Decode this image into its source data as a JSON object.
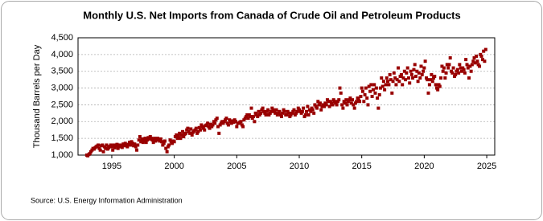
{
  "chart_data": {
    "type": "scatter",
    "title": "Monthly U.S. Net Imports from Canada of Crude Oil and Petroleum Products",
    "y_label": "Thousand Barrels per Day",
    "source": "Source: U.S. Energy Information Administration",
    "color": "#990000",
    "grid": true,
    "xlim": [
      1992.3,
      2025.64
    ],
    "xticks": [
      1995,
      2000,
      2005,
      2010,
      2015,
      2020,
      2025
    ],
    "ylim": [
      1000,
      4500
    ],
    "yticks": [
      {
        "value": 1000,
        "label": "1,000"
      },
      {
        "value": 1500,
        "label": "1,500"
      },
      {
        "value": 2000,
        "label": "2,000"
      },
      {
        "value": 2500,
        "label": "2,500"
      },
      {
        "value": 3000,
        "label": "3,000"
      },
      {
        "value": 3500,
        "label": "3,500"
      },
      {
        "value": 4000,
        "label": "4,000"
      },
      {
        "value": 4500,
        "label": "4,500"
      }
    ],
    "x": [
      1993,
      1993.08,
      1993.17,
      1993.25,
      1993.33,
      1993.42,
      1993.5,
      1993.58,
      1993.67,
      1993.75,
      1993.83,
      1993.92,
      1994,
      1994.08,
      1994.17,
      1994.25,
      1994.33,
      1994.42,
      1994.5,
      1994.58,
      1994.67,
      1994.75,
      1994.83,
      1994.92,
      1995,
      1995.08,
      1995.17,
      1995.25,
      1995.33,
      1995.42,
      1995.5,
      1995.58,
      1995.67,
      1995.75,
      1995.83,
      1995.92,
      1996,
      1996.08,
      1996.17,
      1996.25,
      1996.33,
      1996.42,
      1996.5,
      1996.58,
      1996.67,
      1996.75,
      1996.83,
      1996.92,
      1997,
      1997.08,
      1997.17,
      1997.25,
      1997.33,
      1997.42,
      1997.5,
      1997.58,
      1997.67,
      1997.75,
      1997.83,
      1997.92,
      1998,
      1998.08,
      1998.17,
      1998.25,
      1998.33,
      1998.42,
      1998.5,
      1998.58,
      1998.67,
      1998.75,
      1998.83,
      1998.92,
      1999,
      1999.08,
      1999.17,
      1999.25,
      1999.33,
      1999.42,
      1999.5,
      1999.58,
      1999.67,
      1999.75,
      1999.83,
      1999.92,
      2000,
      2000.08,
      2000.17,
      2000.25,
      2000.33,
      2000.42,
      2000.5,
      2000.58,
      2000.67,
      2000.75,
      2000.83,
      2000.92,
      2001,
      2001.08,
      2001.17,
      2001.25,
      2001.33,
      2001.42,
      2001.5,
      2001.58,
      2001.67,
      2001.75,
      2001.83,
      2001.92,
      2002,
      2002.08,
      2002.17,
      2002.25,
      2002.33,
      2002.42,
      2002.5,
      2002.58,
      2002.67,
      2002.75,
      2002.83,
      2002.92,
      2003,
      2003.08,
      2003.17,
      2003.25,
      2003.33,
      2003.42,
      2003.5,
      2003.58,
      2003.67,
      2003.75,
      2003.83,
      2003.92,
      2004,
      2004.08,
      2004.17,
      2004.25,
      2004.33,
      2004.42,
      2004.5,
      2004.58,
      2004.67,
      2004.75,
      2004.83,
      2004.92,
      2005,
      2005.08,
      2005.17,
      2005.25,
      2005.33,
      2005.42,
      2005.5,
      2005.58,
      2005.67,
      2005.75,
      2005.83,
      2005.92,
      2006,
      2006.08,
      2006.17,
      2006.25,
      2006.33,
      2006.42,
      2006.5,
      2006.58,
      2006.67,
      2006.75,
      2006.83,
      2006.92,
      2007,
      2007.08,
      2007.17,
      2007.25,
      2007.33,
      2007.42,
      2007.5,
      2007.58,
      2007.67,
      2007.75,
      2007.83,
      2007.92,
      2008,
      2008.08,
      2008.17,
      2008.25,
      2008.33,
      2008.42,
      2008.5,
      2008.58,
      2008.67,
      2008.75,
      2008.83,
      2008.92,
      2009,
      2009.08,
      2009.17,
      2009.25,
      2009.33,
      2009.42,
      2009.5,
      2009.58,
      2009.67,
      2009.75,
      2009.83,
      2009.92,
      2010,
      2010.08,
      2010.17,
      2010.25,
      2010.33,
      2010.42,
      2010.5,
      2010.58,
      2010.67,
      2010.75,
      2010.83,
      2010.92,
      2011,
      2011.08,
      2011.17,
      2011.25,
      2011.33,
      2011.42,
      2011.5,
      2011.58,
      2011.67,
      2011.75,
      2011.83,
      2011.92,
      2012,
      2012.08,
      2012.17,
      2012.25,
      2012.33,
      2012.42,
      2012.5,
      2012.58,
      2012.67,
      2012.75,
      2012.83,
      2012.92,
      2013,
      2013.08,
      2013.17,
      2013.25,
      2013.33,
      2013.42,
      2013.5,
      2013.58,
      2013.67,
      2013.75,
      2013.83,
      2013.92,
      2014,
      2014.08,
      2014.17,
      2014.25,
      2014.33,
      2014.42,
      2014.5,
      2014.58,
      2014.67,
      2014.75,
      2014.83,
      2014.92,
      2015,
      2015.08,
      2015.17,
      2015.25,
      2015.33,
      2015.42,
      2015.5,
      2015.58,
      2015.67,
      2015.75,
      2015.83,
      2015.92,
      2016,
      2016.08,
      2016.17,
      2016.25,
      2016.33,
      2016.42,
      2016.5,
      2016.58,
      2016.67,
      2016.75,
      2016.83,
      2016.92,
      2017,
      2017.08,
      2017.17,
      2017.25,
      2017.33,
      2017.42,
      2017.5,
      2017.58,
      2017.67,
      2017.75,
      2017.83,
      2017.92,
      2018,
      2018.08,
      2018.17,
      2018.25,
      2018.33,
      2018.42,
      2018.5,
      2018.58,
      2018.67,
      2018.75,
      2018.83,
      2018.92,
      2019,
      2019.08,
      2019.17,
      2019.25,
      2019.33,
      2019.42,
      2019.5,
      2019.58,
      2019.67,
      2019.75,
      2019.83,
      2019.92,
      2020,
      2020.08,
      2020.17,
      2020.25,
      2020.33,
      2020.42,
      2020.5,
      2020.58,
      2020.67,
      2020.75,
      2020.83,
      2020.92,
      2021,
      2021.08,
      2021.17,
      2021.25,
      2021.33,
      2021.42,
      2021.5,
      2021.58,
      2021.67,
      2021.75,
      2021.83,
      2021.92,
      2022,
      2022.08,
      2022.17,
      2022.25,
      2022.33,
      2022.42,
      2022.5,
      2022.58,
      2022.67,
      2022.75,
      2022.83,
      2022.92,
      2023,
      2023.08,
      2023.17,
      2023.25,
      2023.33,
      2023.42,
      2023.5,
      2023.58,
      2023.67,
      2023.75,
      2023.83,
      2023.92,
      2024,
      2024.08,
      2024.17,
      2024.25,
      2024.33,
      2024.42,
      2024.5,
      2024.58,
      2024.67,
      2024.75,
      2024.83,
      2024.92
    ],
    "values": [
      1000,
      980,
      1020,
      1050,
      1100,
      1150,
      1200,
      1180,
      1220,
      1250,
      1270,
      1300,
      1200,
      1150,
      1280,
      1300,
      1100,
      1250,
      1200,
      1300,
      1180,
      1220,
      1260,
      1300,
      1250,
      1150,
      1300,
      1220,
      1280,
      1320,
      1200,
      1250,
      1300,
      1280,
      1230,
      1330,
      1280,
      1350,
      1300,
      1250,
      1320,
      1380,
      1300,
      1400,
      1350,
      1280,
      1330,
      1250,
      1150,
      1300,
      1450,
      1550,
      1400,
      1480,
      1380,
      1420,
      1500,
      1380,
      1450,
      1520,
      1480,
      1550,
      1500,
      1450,
      1380,
      1500,
      1420,
      1450,
      1500,
      1460,
      1420,
      1480,
      1400,
      1300,
      1350,
      1420,
      1200,
      1100,
      1250,
      1300,
      1450,
      1400,
      1350,
      1420,
      1400,
      1550,
      1600,
      1500,
      1580,
      1650,
      1500,
      1600,
      1700,
      1550,
      1620,
      1650,
      1750,
      1800,
      1700,
      1650,
      1780,
      1600,
      1680,
      1720,
      1750,
      1800,
      1650,
      1700,
      1820,
      1750,
      1900,
      1850,
      1800,
      1750,
      1880,
      1900,
      1950,
      1850,
      1800,
      1920,
      1850,
      1900,
      2000,
      1950,
      2050,
      2100,
      1850,
      1650,
      1900,
      1950,
      2000,
      1950,
      2000,
      2050,
      2100,
      1950,
      1900,
      2050,
      2000,
      1950,
      2020,
      1980,
      2050,
      2000,
      1850,
      1950,
      1950,
      1980,
      2000,
      1900,
      1850,
      2050,
      2100,
      2150,
      2200,
      2100,
      2200,
      2150,
      2400,
      2100,
      2150,
      2000,
      2250,
      2200,
      2150,
      2300,
      2200,
      2250,
      2350,
      2400,
      2300,
      2250,
      2200,
      2300,
      2350,
      2200,
      2250,
      2300,
      2400,
      2350,
      2300,
      2250,
      2350,
      2200,
      2250,
      2300,
      2200,
      2150,
      2250,
      2350,
      2300,
      2200,
      2200,
      2300,
      2250,
      2150,
      2200,
      2250,
      2300,
      2350,
      2200,
      2250,
      2300,
      2400,
      2350,
      2300,
      2250,
      2300,
      2400,
      2150,
      2200,
      2300,
      2450,
      2200,
      2350,
      2300,
      2400,
      2350,
      2250,
      2500,
      2450,
      2400,
      2600,
      2500,
      2550,
      2350,
      2450,
      2500,
      2450,
      2550,
      2500,
      2650,
      2600,
      2450,
      2600,
      2550,
      2500,
      2650,
      2600,
      2550,
      2500,
      2600,
      2650,
      3000,
      2850,
      2500,
      2400,
      2600,
      2550,
      2650,
      2500,
      2600,
      2650,
      2700,
      2550,
      2650,
      2500,
      2400,
      2550,
      2600,
      2700,
      2650,
      2600,
      2750,
      3000,
      2900,
      2600,
      2800,
      3000,
      2700,
      2500,
      3050,
      2900,
      3100,
      2750,
      2950,
      3100,
      2850,
      3000,
      2700,
      2400,
      2800,
      3000,
      3300,
      3050,
      3200,
      2950,
      3100,
      3300,
      3200,
      3100,
      3400,
      3250,
      2850,
      3200,
      3450,
      3300,
      3100,
      3250,
      3600,
      3200,
      3350,
      3400,
      3100,
      3300,
      3500,
      3250,
      3450,
      3600,
      3300,
      3150,
      3500,
      3400,
      3300,
      3550,
      3700,
      3350,
      3500,
      3200,
      3450,
      3300,
      3650,
      3400,
      3500,
      3600,
      3800,
      3300,
      3250,
      2850,
      3100,
      3250,
      3400,
      3200,
      3300,
      3350,
      3100,
      3000,
      2950,
      3100,
      3050,
      3300,
      3650,
      3500,
      3600,
      3300,
      3450,
      3700,
      3600,
      3700,
      3900,
      3500,
      3450,
      3600,
      3350,
      3400,
      3500,
      3550,
      3450,
      3700,
      3600,
      3500,
      3600,
      3550,
      3450,
      3850,
      3700,
      3600,
      3300,
      3650,
      3500,
      3700,
      3800,
      3900,
      3750,
      3950,
      3800,
      3700,
      3650,
      4000,
      3950,
      3850,
      4100,
      3800,
      4150
    ]
  }
}
